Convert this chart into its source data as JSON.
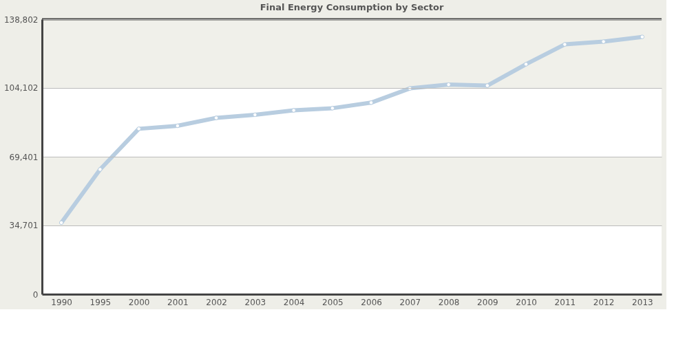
{
  "chart_data": {
    "type": "line",
    "title": "Final Energy Consumption by Sector",
    "categories": [
      "1990",
      "1995",
      "2000",
      "2001",
      "2002",
      "2003",
      "2004",
      "2005",
      "2006",
      "2007",
      "2008",
      "2009",
      "2010",
      "2011",
      "2012",
      "2013"
    ],
    "series": [
      {
        "color": "#b8cde0",
        "values": [
          36100,
          63000,
          83500,
          85000,
          89000,
          90600,
          92800,
          93900,
          96700,
          103900,
          105800,
          105300,
          116100,
          126100,
          127500,
          129900
        ]
      }
    ],
    "ylim": [
      0,
      138802
    ],
    "yticks": [
      0,
      {
        "value": 34701,
        "label": "34,701"
      },
      {
        "value": 69401,
        "label": "69,401"
      },
      {
        "value": 104102,
        "label": "104,102"
      },
      {
        "value": 138802,
        "label": "138,802"
      }
    ],
    "bands": [
      {
        "axis": "y",
        "from": 34701,
        "to": 69401,
        "color": "#f0f0ea"
      },
      {
        "axis": "y",
        "from": 104102,
        "to": 138802,
        "color": "#f0f0ea"
      }
    ],
    "grid": "y",
    "marker": "circle",
    "line_style": "solid"
  }
}
